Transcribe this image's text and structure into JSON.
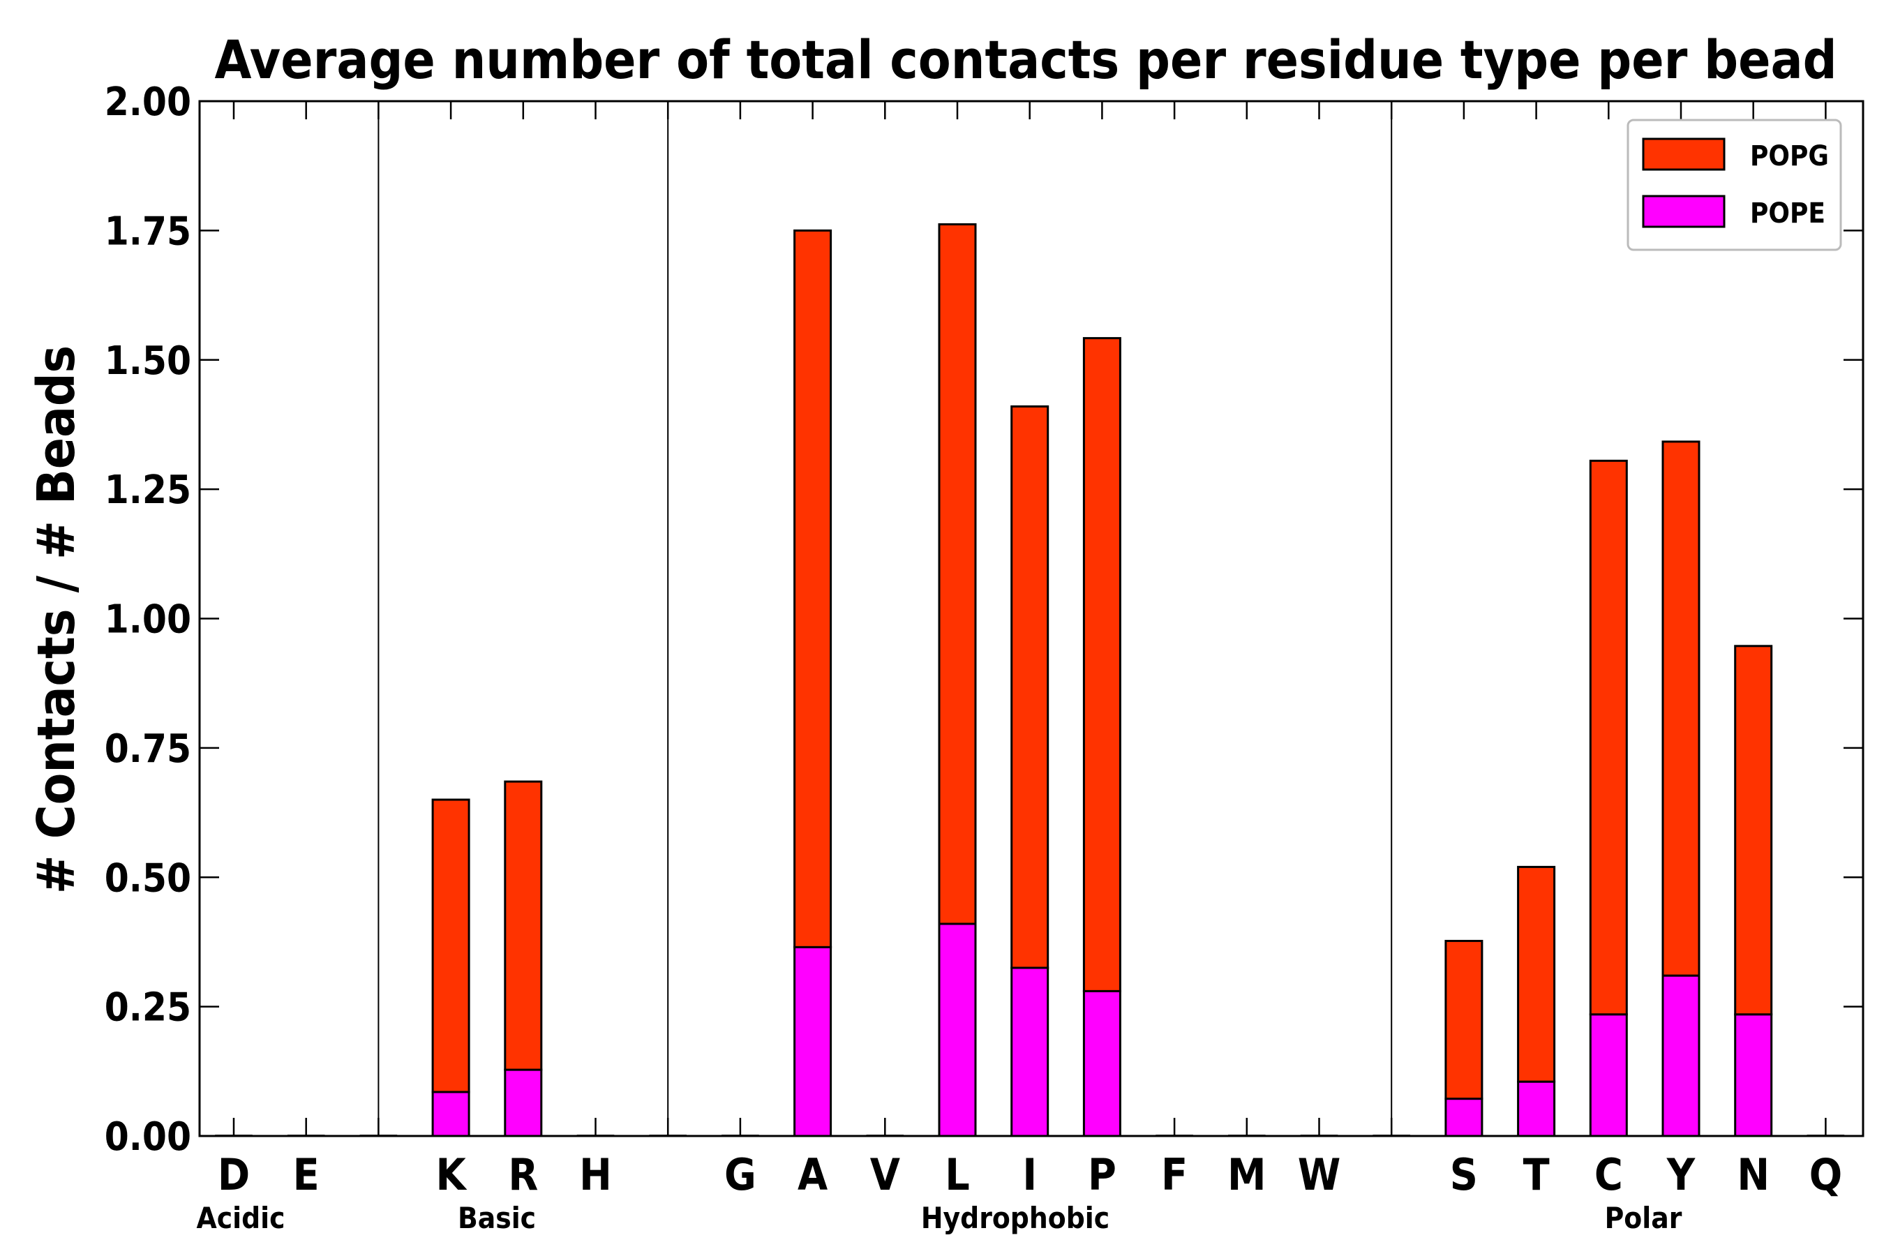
{
  "chart_data": {
    "type": "bar",
    "stacked": true,
    "title": "Average number of total contacts per residue type per bead",
    "xlabel": "",
    "ylabel": "# Contacts / # Beads",
    "ylim": [
      0,
      2.0
    ],
    "yticks": [
      "0.00",
      "0.25",
      "0.50",
      "0.75",
      "1.00",
      "1.25",
      "1.50",
      "1.75",
      "2.00"
    ],
    "categories": [
      "D",
      "E",
      "",
      "K",
      "R",
      "H",
      "",
      "G",
      "A",
      "V",
      "L",
      "I",
      "P",
      "F",
      "M",
      "W",
      "",
      "S",
      "T",
      "C",
      "Y",
      "N",
      "Q"
    ],
    "groups": [
      {
        "label": "Acidic",
        "categories": [
          "D",
          "E"
        ]
      },
      {
        "label": "Basic",
        "categories": [
          "K",
          "R",
          "H"
        ]
      },
      {
        "label": "Hydrophobic",
        "categories": [
          "G",
          "A",
          "V",
          "L",
          "I",
          "P",
          "F",
          "M",
          "W"
        ]
      },
      {
        "label": "Polar",
        "categories": [
          "S",
          "T",
          "C",
          "Y",
          "N",
          "Q"
        ]
      }
    ],
    "series": [
      {
        "name": "POPE",
        "color": "#ff00ff",
        "values": [
          0,
          0,
          0,
          0.085,
          0.128,
          0,
          0,
          0,
          0.365,
          0,
          0.41,
          0.325,
          0.28,
          0,
          0,
          0,
          0,
          0.072,
          0.105,
          0.235,
          0.31,
          0.235,
          0
        ]
      },
      {
        "name": "POPG",
        "color": "#ff3300",
        "values": [
          0,
          0,
          0,
          0.565,
          0.557,
          0,
          0,
          0,
          1.385,
          0,
          1.352,
          1.085,
          1.262,
          0,
          0,
          0,
          0,
          0.305,
          0.415,
          1.07,
          1.032,
          0.712,
          0
        ]
      }
    ],
    "legend": {
      "position": "top-right",
      "entries": [
        "POPG",
        "POPE"
      ]
    }
  }
}
